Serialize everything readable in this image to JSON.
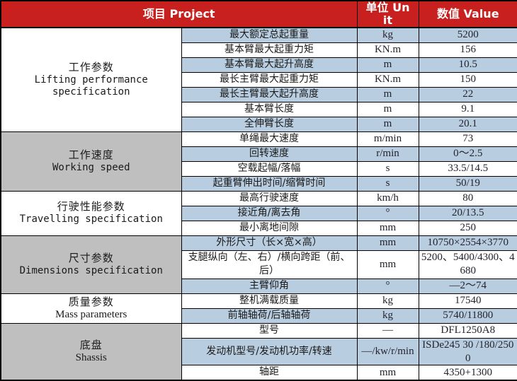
{
  "table": {
    "header": {
      "project": "项目  Project",
      "unit": "单位 Unit",
      "value": "数值  Value"
    },
    "colors": {
      "header_bg": "#C8201F",
      "header_text": "#FFFFFF",
      "row_alt_bg": "#B9CDE0",
      "category_gray_bg": "#BFBFBF",
      "border": "#000000"
    },
    "groups": [
      {
        "category_zh": "工作参数",
        "category_en": "Lifting performance specification",
        "shaded": false,
        "rows": [
          {
            "item": "最大额定总起重量",
            "unit": "kg",
            "value": "5200"
          },
          {
            "item": "基本臂最大起重力矩",
            "unit": "KN.m",
            "value": "156"
          },
          {
            "item": "基本臂最大起升高度",
            "unit": "m",
            "value": "10.5"
          },
          {
            "item": "最长主臂最大起重力矩",
            "unit": "KN.m",
            "value": "150"
          },
          {
            "item": "最长主臂最大起升高度",
            "unit": "m",
            "value": "22"
          },
          {
            "item": "基本臂长度",
            "unit": "m",
            "value": "9.1"
          },
          {
            "item": "全伸臂长度",
            "unit": "m",
            "value": "20.1"
          }
        ]
      },
      {
        "category_zh": "工作速度",
        "category_en": "Working speed",
        "shaded": true,
        "rows": [
          {
            "item": "单绳最大速度",
            "unit": "m/min",
            "value": "73"
          },
          {
            "item": "回转速度",
            "unit": "r/min",
            "value": "0～2.5"
          },
          {
            "item": "空载起幅/落幅",
            "unit": "s",
            "value": "33.5/14.5"
          },
          {
            "item": "起重臂伸出时间/缩臂时间",
            "unit": "s",
            "value": "50/19"
          }
        ]
      },
      {
        "category_zh": "行驶性能参数",
        "category_en": "Travelling specification",
        "shaded": false,
        "rows": [
          {
            "item": "最高行驶速度",
            "unit": "km/h",
            "value": "80"
          },
          {
            "item": "接近角/离去角",
            "unit": "°",
            "value": "20/13.5"
          },
          {
            "item": "最小离地间隙",
            "unit": "mm",
            "value": "250"
          }
        ]
      },
      {
        "category_zh": "尺寸参数",
        "category_en": "Dimensions specification",
        "shaded": true,
        "rows": [
          {
            "item": "外形尺寸（长×宽×高）",
            "unit": "mm",
            "value": "10750×2554×3770"
          },
          {
            "item": "支腿纵向（左、右）/横向跨距（前、后）",
            "unit": "mm",
            "value": "5200、5400/4300、4680"
          },
          {
            "item": "主臂仰角",
            "unit": "°",
            "value": "—2～74"
          }
        ]
      },
      {
        "category_zh": "质量参数",
        "category_en": "Mass parameters",
        "shaded": false,
        "rows": [
          {
            "item": "整机满载质量",
            "unit": "kg",
            "value": "17540"
          },
          {
            "item": "前轴轴荷/后轴轴荷",
            "unit": "kg",
            "value": "5740/11800"
          }
        ]
      },
      {
        "category_zh": "底盘",
        "category_en": "Shassis",
        "shaded": true,
        "rows": [
          {
            "item": "型号",
            "unit": "—",
            "value": "DFL1250A8"
          },
          {
            "item": "发动机型号/发动机功率/转速",
            "unit": "—/kw/r/min",
            "value": "ISDe245 30 /180/2500"
          },
          {
            "item": "轴距",
            "unit": "mm",
            "value": "4350+1300"
          }
        ]
      }
    ]
  }
}
